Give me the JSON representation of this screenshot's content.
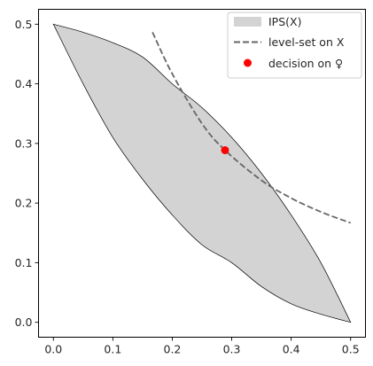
{
  "chart_data": {
    "type": "area",
    "title": "",
    "xlabel": "",
    "ylabel": "",
    "xlim": [
      -0.025,
      0.525
    ],
    "ylim": [
      -0.025,
      0.525
    ],
    "x_ticks": [
      0.0,
      0.1,
      0.2,
      0.3,
      0.4,
      0.5
    ],
    "y_ticks": [
      0.0,
      0.1,
      0.2,
      0.3,
      0.4,
      0.5
    ],
    "x_tick_labels": [
      "0.0",
      "0.1",
      "0.2",
      "0.3",
      "0.4",
      "0.5"
    ],
    "y_tick_labels": [
      "0.0",
      "0.1",
      "0.2",
      "0.3",
      "0.4",
      "0.5"
    ],
    "grid": false,
    "legend_position": "top-right",
    "series": [
      {
        "name": "IPS(X)",
        "kind": "filled-region",
        "color": "#d3d3d3",
        "edge_color": "#000000",
        "upper_boundary": {
          "x": [
            0.0,
            0.05,
            0.1,
            0.15,
            0.2,
            0.25,
            0.3,
            0.35,
            0.4,
            0.45,
            0.5
          ],
          "y": [
            0.5,
            0.4865,
            0.469,
            0.445,
            0.4,
            0.36,
            0.31,
            0.25,
            0.18,
            0.1,
            0.0
          ]
        },
        "lower_boundary": {
          "x": [
            0.0,
            0.05,
            0.1,
            0.15,
            0.2,
            0.25,
            0.3,
            0.35,
            0.4,
            0.45,
            0.5
          ],
          "y": [
            0.5,
            0.4,
            0.31,
            0.24,
            0.18,
            0.13,
            0.1,
            0.06,
            0.031,
            0.0135,
            0.0
          ]
        }
      },
      {
        "name": "level-set on X",
        "kind": "line",
        "style": "dashed",
        "color": "#666666",
        "x": [
          0.1667,
          0.2,
          0.25,
          0.2887,
          0.35,
          0.4,
          0.45,
          0.5
        ],
        "y": [
          0.4866,
          0.4167,
          0.3333,
          0.2887,
          0.2381,
          0.2083,
          0.1852,
          0.1667
        ]
      },
      {
        "name": "decision on ♀",
        "kind": "scatter",
        "color": "#ff0000",
        "x": [
          0.2887
        ],
        "y": [
          0.2887
        ]
      }
    ]
  }
}
